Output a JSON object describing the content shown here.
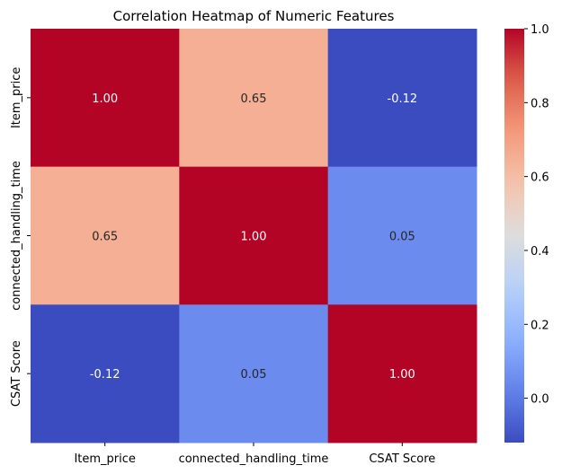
{
  "chart_data": {
    "type": "heatmap",
    "title": "Correlation Heatmap of Numeric Features",
    "x_labels": [
      "Item_price",
      "connected_handling_time",
      "CSAT Score"
    ],
    "y_labels": [
      "Item_price",
      "connected_handling_time",
      "CSAT Score"
    ],
    "values": [
      [
        1.0,
        0.65,
        -0.12
      ],
      [
        0.65,
        1.0,
        0.05
      ],
      [
        -0.12,
        0.05,
        1.0
      ]
    ],
    "annotation_format": "0.00",
    "colormap": "coolwarm",
    "color_range": [
      -0.12,
      1.0
    ],
    "colorbar_ticks": [
      "0.0",
      "0.2",
      "0.4",
      "0.6",
      "0.8",
      "1.0"
    ],
    "colorbar_tick_values": [
      0.0,
      0.2,
      0.4,
      0.6,
      0.8,
      1.0
    ]
  }
}
